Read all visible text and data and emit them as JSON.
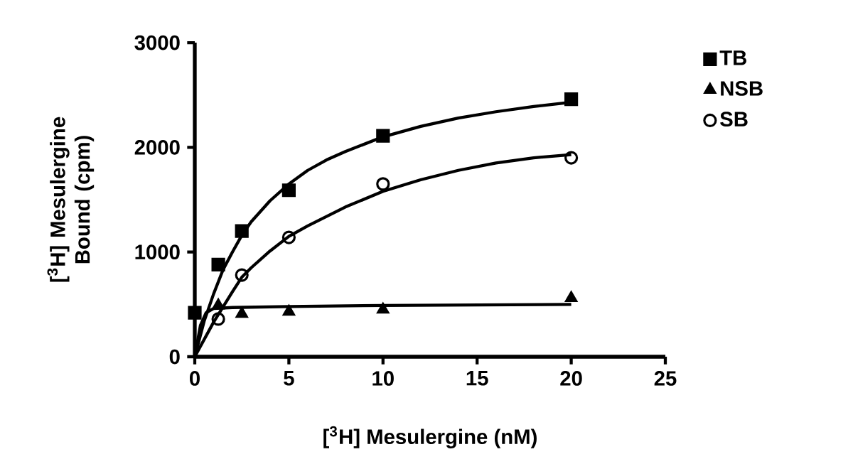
{
  "chart_data": {
    "type": "scatter",
    "xlabel": "[$^{3}$H] Mesulergine (nM)",
    "ylabel": "[$^{3}$H] Mesulergine Bound (cpm)",
    "xlim": [
      0,
      25
    ],
    "ylim": [
      0,
      3000
    ],
    "xticks": [
      0,
      5,
      10,
      15,
      20,
      25
    ],
    "yticks": [
      0,
      1000,
      2000,
      3000
    ],
    "legend": "top right",
    "grid": false,
    "series": [
      {
        "name": "TB",
        "marker": "square",
        "color": "#000000",
        "x": [
          0,
          1.25,
          2.5,
          5,
          10,
          20
        ],
        "values": [
          420,
          880,
          1200,
          1590,
          2110,
          2460
        ]
      },
      {
        "name": "NSB",
        "marker": "triangle",
        "color": "#000000",
        "x": [
          1.25,
          2.5,
          5,
          10,
          20
        ],
        "values": [
          490,
          410,
          430,
          450,
          560
        ]
      },
      {
        "name": "SB",
        "marker": "circle",
        "color": "#000000",
        "x": [
          1.25,
          2.5,
          5,
          10,
          20
        ],
        "values": [
          360,
          780,
          1140,
          1650,
          1900
        ]
      },
      {
        "type": "line",
        "marker": "none",
        "line_style": "solid",
        "color": "#000000",
        "x": [
          0,
          0.5,
          1,
          1.5,
          2,
          2.5,
          3,
          4,
          5,
          6,
          7,
          8,
          10,
          12,
          14,
          16,
          18,
          20
        ],
        "values": [
          0,
          340,
          600,
          830,
          1000,
          1160,
          1290,
          1490,
          1650,
          1780,
          1880,
          1960,
          2100,
          2200,
          2280,
          2340,
          2390,
          2430
        ]
      },
      {
        "type": "line",
        "marker": "none",
        "line_style": "solid",
        "color": "#000000",
        "x": [
          0,
          0.3,
          0.6,
          1,
          2,
          5,
          10,
          20
        ],
        "values": [
          0,
          300,
          420,
          460,
          470,
          480,
          490,
          500
        ]
      },
      {
        "type": "line",
        "marker": "none",
        "line_style": "solid",
        "color": "#000000",
        "x": [
          0,
          1,
          2,
          2.5,
          3,
          4,
          5,
          6,
          8,
          10,
          12,
          14,
          16,
          18,
          20
        ],
        "values": [
          0,
          330,
          620,
          760,
          850,
          1010,
          1150,
          1250,
          1430,
          1580,
          1690,
          1780,
          1850,
          1900,
          1930
        ]
      }
    ]
  }
}
